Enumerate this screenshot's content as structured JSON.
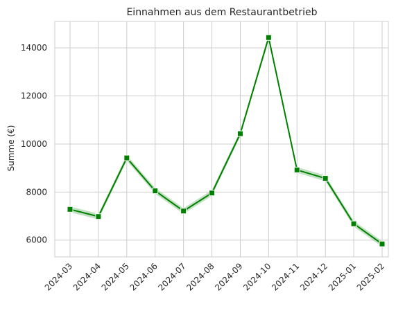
{
  "chart_data": {
    "type": "line",
    "title": "Einnahmen aus dem Restaurantbetrieb",
    "xlabel": "",
    "ylabel": "Summe (€)",
    "categories": [
      "2024-03",
      "2024-04",
      "2024-05",
      "2024-06",
      "2024-07",
      "2024-08",
      "2024-09",
      "2024-10",
      "2024-11",
      "2024-12",
      "2025-01",
      "2025-02"
    ],
    "values": [
      7280,
      6980,
      9420,
      8050,
      7210,
      7960,
      10430,
      14430,
      8920,
      8570,
      6680,
      5840
    ],
    "band_half_width": 120,
    "ylim": [
      5300,
      15100
    ],
    "yticks": [
      6000,
      8000,
      10000,
      12000,
      14000
    ],
    "grid": true,
    "colors": {
      "line": "#008000",
      "band": "#90c990",
      "marker_edge": "#ffffff"
    },
    "marker": "square"
  }
}
